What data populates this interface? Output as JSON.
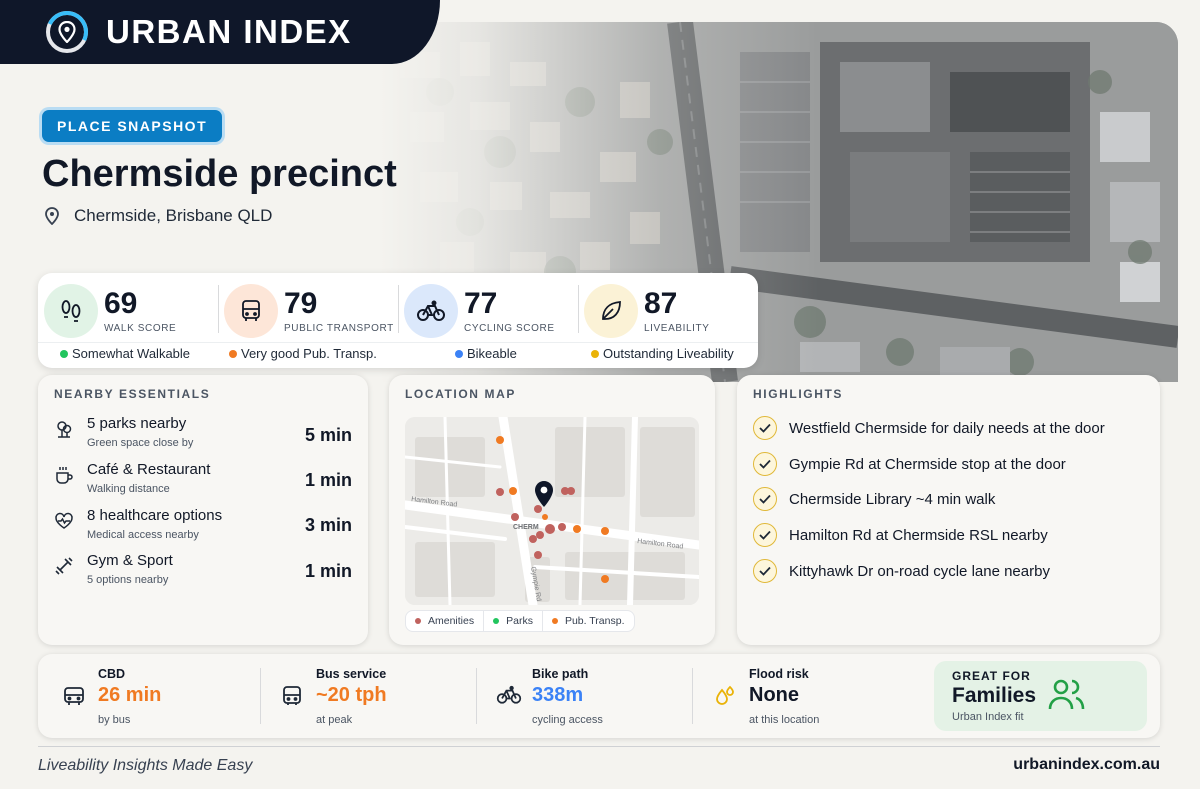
{
  "brand": {
    "name": "URBAN INDEX",
    "logo_icon": "map-pin-ring-icon"
  },
  "hero": {
    "badge": "PLACE SNAPSHOT",
    "title": "Chermside precinct",
    "location": "Chermside, Brisbane QLD",
    "location_icon": "map-pin-icon"
  },
  "scores": [
    {
      "value": "69",
      "label": "WALK SCORE",
      "desc": "Somewhat Walkable",
      "icon": "footprints-icon",
      "color": "#22c55e",
      "bg": "#e1f3e6"
    },
    {
      "value": "79",
      "label": "PUBLIC TRANSPORT",
      "desc": "Very good Pub. Transp.",
      "icon": "bus-icon",
      "color": "#f07a22",
      "bg": "#fde6d8"
    },
    {
      "value": "77",
      "label": "CYCLING SCORE",
      "desc": "Bikeable",
      "icon": "bicycle-icon",
      "color": "#3b82f6",
      "bg": "#dbe8fb"
    },
    {
      "value": "87",
      "label": "LIVEABILITY",
      "desc": "Outstanding Liveability",
      "icon": "leaf-icon",
      "color": "#eab308",
      "bg": "#fbf2d6"
    }
  ],
  "essentials": {
    "title": "NEARBY ESSENTIALS",
    "items": [
      {
        "name": "5 parks nearby",
        "sub": "Green space close by",
        "time": "5 min",
        "icon": "tree-icon"
      },
      {
        "name": "Café & Restaurant",
        "sub": "Walking distance",
        "time": "1 min",
        "icon": "coffee-cup-icon"
      },
      {
        "name": "8 healthcare options",
        "sub": "Medical access nearby",
        "time": "3 min",
        "icon": "heart-pulse-icon"
      },
      {
        "name": "Gym & Sport",
        "sub": "5 options nearby",
        "time": "1 min",
        "icon": "dumbbell-icon"
      }
    ]
  },
  "map": {
    "title": "LOCATION MAP",
    "streets": {
      "hamilton": "Hamilton Road",
      "gympie": "Gympie Rd",
      "suburb": "CHERM",
      "hamilton2": "Hamilton Road"
    },
    "legend": [
      {
        "label": "Amenities",
        "color": "#c0625e"
      },
      {
        "label": "Parks",
        "color": "#22c55e"
      },
      {
        "label": "Pub. Transp.",
        "color": "#f07a22"
      }
    ]
  },
  "highlights": {
    "title": "HIGHLIGHTS",
    "items": [
      "Westfield Chermside for daily needs at the door",
      "Gympie Rd at Chermside stop at the door",
      "Chermside Library ~4 min walk",
      "Hamilton Rd at Chermside RSL nearby",
      "Kittyhawk Dr on-road cycle lane nearby"
    ]
  },
  "stats": [
    {
      "label": "CBD",
      "value": "26 min",
      "sub": "by bus",
      "color": "#f07a22",
      "icon": "bus-icon"
    },
    {
      "label": "Bus service",
      "value": "~20 tph",
      "sub": "at peak",
      "color": "#f07a22",
      "icon": "bus-front-icon"
    },
    {
      "label": "Bike path",
      "value": "338m",
      "sub": "cycling access",
      "color": "#3b82f6",
      "icon": "bicycle-icon"
    },
    {
      "label": "Flood risk",
      "value": "None",
      "sub": "at this location",
      "color": "#111827",
      "icon": "water-drops-icon"
    }
  ],
  "fit": {
    "line1": "GREAT FOR",
    "line2": "Families",
    "line3": "Urban Index fit",
    "icon": "users-icon"
  },
  "footer": {
    "tagline": "Liveability Insights Made Easy",
    "url": "urbanindex.com.au"
  }
}
